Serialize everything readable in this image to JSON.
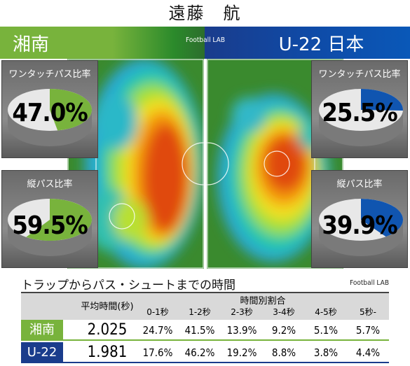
{
  "title": "遠藤　航",
  "brand": "Football LAB",
  "teams": {
    "left": {
      "name": "湘南",
      "color": "#78b33c"
    },
    "right": {
      "name": "U-22 日本",
      "color": "#1055b0"
    }
  },
  "panels": {
    "left_top": {
      "label": "ワンタッチパス比率",
      "value": "47.0%"
    },
    "left_bottom": {
      "label": "縦パス比率",
      "value": "59.5%"
    },
    "right_top": {
      "label": "ワンタッチパス比率",
      "value": "25.5%"
    },
    "right_bottom": {
      "label": "縦パス比率",
      "value": "39.9%"
    }
  },
  "stats": {
    "title": "トラップからパス・シュートまでの時間",
    "brand": "Football LAB",
    "avg_header": "平均時間(秒)",
    "group_header": "時間別割合",
    "categories": [
      "0-1秒",
      "1-2秒",
      "2-3秒",
      "3-4秒",
      "4-5秒",
      "5秒-"
    ],
    "rows": [
      {
        "label": "湘南",
        "avg": "2.025",
        "values": [
          "24.7%",
          "41.5%",
          "13.9%",
          "9.2%",
          "5.1%",
          "5.7%"
        ],
        "color": "#78b33c"
      },
      {
        "label": "U-22",
        "avg": "1.981",
        "values": [
          "17.6%",
          "46.2%",
          "19.2%",
          "8.8%",
          "3.8%",
          "4.4%"
        ],
        "color": "#1a3c8c"
      }
    ]
  },
  "chart_data": [
    {
      "type": "pie",
      "title": "ワンタッチパス比率",
      "series": [
        {
          "name": "湘南",
          "values": [
            47.0,
            53.0
          ]
        }
      ]
    },
    {
      "type": "pie",
      "title": "縦パス比率",
      "series": [
        {
          "name": "湘南",
          "values": [
            59.5,
            40.5
          ]
        }
      ]
    },
    {
      "type": "pie",
      "title": "ワンタッチパス比率",
      "series": [
        {
          "name": "U-22 日本",
          "values": [
            25.5,
            74.5
          ]
        }
      ]
    },
    {
      "type": "pie",
      "title": "縦パス比率",
      "series": [
        {
          "name": "U-22 日本",
          "values": [
            39.9,
            60.1
          ]
        }
      ]
    },
    {
      "type": "table",
      "title": "トラップからパス・シュートまでの時間",
      "categories": [
        "0-1秒",
        "1-2秒",
        "2-3秒",
        "3-4秒",
        "4-5秒",
        "5秒-"
      ],
      "series": [
        {
          "name": "湘南",
          "values": [
            24.7,
            41.5,
            13.9,
            9.2,
            5.1,
            5.7
          ]
        },
        {
          "name": "U-22",
          "values": [
            17.6,
            46.2,
            19.2,
            8.8,
            3.8,
            4.4
          ]
        }
      ]
    }
  ]
}
